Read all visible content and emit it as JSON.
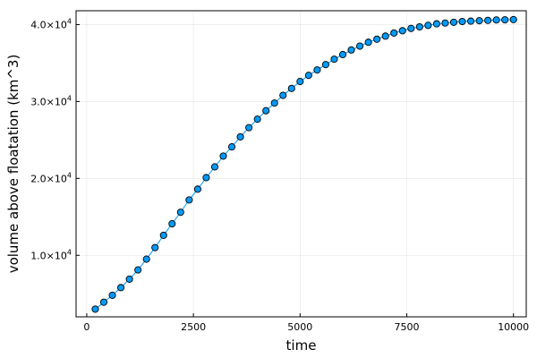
{
  "chart_data": {
    "type": "scatter",
    "title": "",
    "xlabel": "time",
    "ylabel": "volume above floatation (km^3)",
    "xlim": [
      -250,
      10300
    ],
    "ylim": [
      2000,
      41800
    ],
    "x_ticks": [
      0,
      2500,
      5000,
      7500,
      10000
    ],
    "x_tick_labels": [
      "0",
      "2500",
      "5000",
      "7500",
      "10000"
    ],
    "y_ticks": [
      10000,
      20000,
      30000,
      40000
    ],
    "y_tick_labels": [
      {
        "mantissa": "1.0",
        "exponent": "4"
      },
      {
        "mantissa": "2.0",
        "exponent": "4"
      },
      {
        "mantissa": "3.0",
        "exponent": "4"
      },
      {
        "mantissa": "4.0",
        "exponent": "4"
      }
    ],
    "y_tick_base": "×10",
    "grid": true,
    "legend": "none",
    "series": [
      {
        "color": "#009af9",
        "line": true,
        "marker": "circle",
        "x": [
          200,
          400,
          600,
          800,
          1000,
          1200,
          1400,
          1600,
          1800,
          2000,
          2200,
          2400,
          2600,
          2800,
          3000,
          3200,
          3400,
          3600,
          3800,
          4000,
          4200,
          4400,
          4600,
          4800,
          5000,
          5200,
          5400,
          5600,
          5800,
          6000,
          6200,
          6400,
          6600,
          6800,
          7000,
          7200,
          7400,
          7600,
          7800,
          8000,
          8200,
          8400,
          8600,
          8800,
          9000,
          9200,
          9400,
          9600,
          9800,
          10000
        ],
        "y": [
          3000,
          3900,
          4800,
          5800,
          6900,
          8100,
          9500,
          11000,
          12600,
          14100,
          15600,
          17200,
          18600,
          20100,
          21500,
          22900,
          24100,
          25400,
          26600,
          27700,
          28800,
          29800,
          30800,
          31700,
          32600,
          33400,
          34100,
          34800,
          35500,
          36100,
          36700,
          37200,
          37700,
          38100,
          38500,
          38900,
          39200,
          39500,
          39700,
          39900,
          40100,
          40200,
          40300,
          40400,
          40450,
          40500,
          40550,
          40600,
          40620,
          40650
        ]
      }
    ]
  }
}
